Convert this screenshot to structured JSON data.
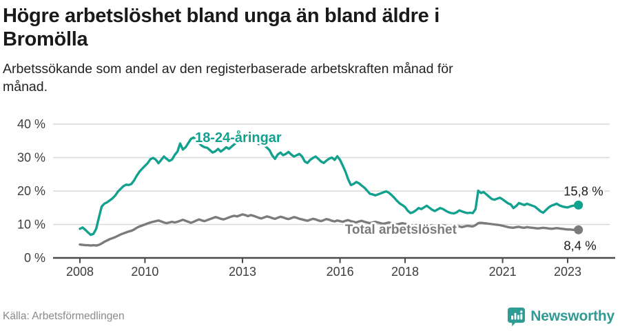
{
  "header": {
    "title": "Högre arbetslöshet bland unga än bland äldre i\nBromölla",
    "subtitle": "Arbetssökande som andel av den registerbaserade arbetskraften månad för\nmånad."
  },
  "footer": {
    "source": "Källa: Arbetsförmedlingen",
    "brand": "Newsworthy"
  },
  "colors": {
    "accent_teal": "#12A08F",
    "line_gray": "#7b7b7b",
    "brand_teal": "#2E9B94",
    "axis": "#4a4a4a",
    "grid": "#d9d9d9",
    "tick_text": "#3d3d3d",
    "value_text": "#1a1a1a"
  },
  "chart_data": {
    "type": "line",
    "title": "Högre arbetslöshet bland unga än bland äldre i Bromölla",
    "subtitle": "Arbetssökande som andel av den registerbaserade arbetskraften månad för månad.",
    "unit": "%",
    "x_start_year": 2008,
    "x_end_label": "2023-05",
    "months_per_point": 1,
    "x_ticks": [
      2008,
      2010,
      2013,
      2016,
      2018,
      2021,
      2023
    ],
    "x_tick_labels": [
      "2008",
      "2010",
      "2013",
      "2016",
      "2018",
      "2021",
      "2023"
    ],
    "y_ticks": [
      0,
      10,
      20,
      30,
      40
    ],
    "y_tick_labels": [
      "0 %",
      "10 %",
      "20 %",
      "30 %",
      "40 %"
    ],
    "ylim": [
      0,
      43
    ],
    "grid": true,
    "legend_position": "inline-labels",
    "series": [
      {
        "name": "18-24-åringar",
        "color": "#12A08F",
        "end_label": "15,8 %",
        "end_value": 15.8,
        "inline_label": {
          "year": 2011.54,
          "value": 34.6,
          "font_size": 20
        },
        "values": [
          8.7,
          9.1,
          8.4,
          7.6,
          6.9,
          7.2,
          8.7,
          12.0,
          15.3,
          16.2,
          16.6,
          17.2,
          17.8,
          18.6,
          19.8,
          20.6,
          21.4,
          21.9,
          21.8,
          22.1,
          23.2,
          24.6,
          25.8,
          26.7,
          27.5,
          28.3,
          29.5,
          29.9,
          29.4,
          28.3,
          29.3,
          30.3,
          29.6,
          29.0,
          29.4,
          30.8,
          31.8,
          34.2,
          32.4,
          33.1,
          34.3,
          35.6,
          36.0,
          35.2,
          34.3,
          33.5,
          33.1,
          32.9,
          32.2,
          31.5,
          31.9,
          32.6,
          31.8,
          32.4,
          33.1,
          32.6,
          33.3,
          34.0,
          34.6,
          35.2,
          35.8,
          35.3,
          34.7,
          35.2,
          35.6,
          34.8,
          34.0,
          34.4,
          33.7,
          33.0,
          32.2,
          30.6,
          29.6,
          30.9,
          31.5,
          30.7,
          31.1,
          31.7,
          30.9,
          30.3,
          30.7,
          31.1,
          30.3,
          28.8,
          28.4,
          29.3,
          29.9,
          30.3,
          29.6,
          28.8,
          28.4,
          29.1,
          29.7,
          30.0,
          29.3,
          30.4,
          29.3,
          27.6,
          25.8,
          23.5,
          21.8,
          22.1,
          22.7,
          22.3,
          21.6,
          21.0,
          20.1,
          19.2,
          19.0,
          18.7,
          19.0,
          19.3,
          19.6,
          19.9,
          19.5,
          18.8,
          18.0,
          17.1,
          16.3,
          15.8,
          15.2,
          14.1,
          13.4,
          13.7,
          14.2,
          14.9,
          14.6,
          15.1,
          15.6,
          15.0,
          14.4,
          14.0,
          14.5,
          14.9,
          14.6,
          14.1,
          13.7,
          13.4,
          13.3,
          13.6,
          14.2,
          13.9,
          13.6,
          13.4,
          13.5,
          13.4,
          14.6,
          20.1,
          19.4,
          19.7,
          19.0,
          18.3,
          17.6,
          17.4,
          17.7,
          18.0,
          17.5,
          16.9,
          16.3,
          16.0,
          14.9,
          15.5,
          16.4,
          16.1,
          15.8,
          16.2,
          15.9,
          15.6,
          15.3,
          14.6,
          13.9,
          13.5,
          14.3,
          15.1,
          15.6,
          15.9,
          16.2,
          15.7,
          15.4,
          15.2,
          15.1,
          15.4,
          15.6,
          15.7,
          15.8
        ]
      },
      {
        "name": "Total arbetslöshet",
        "color": "#7b7b7b",
        "end_label": "8,4 %",
        "end_value": 8.4,
        "inline_label": {
          "year": 2016.15,
          "value": 7.2,
          "font_size": 19
        },
        "values": [
          4.0,
          3.9,
          3.8,
          3.8,
          3.7,
          3.8,
          3.7,
          3.9,
          4.3,
          4.8,
          5.2,
          5.6,
          5.9,
          6.2,
          6.6,
          7.0,
          7.3,
          7.6,
          7.9,
          8.1,
          8.5,
          9.0,
          9.4,
          9.7,
          10.0,
          10.3,
          10.6,
          10.8,
          11.0,
          11.2,
          10.9,
          10.6,
          10.4,
          10.6,
          10.8,
          10.6,
          10.8,
          11.1,
          11.4,
          11.1,
          10.8,
          10.5,
          10.8,
          11.2,
          11.5,
          11.2,
          11.0,
          11.3,
          11.6,
          11.9,
          12.2,
          12.0,
          11.7,
          11.5,
          11.8,
          12.1,
          12.4,
          12.6,
          12.4,
          12.7,
          13.0,
          12.8,
          12.5,
          12.8,
          12.6,
          12.3,
          12.0,
          11.8,
          12.1,
          12.4,
          12.2,
          11.9,
          11.7,
          12.0,
          12.3,
          12.1,
          11.8,
          11.6,
          11.9,
          12.2,
          12.0,
          11.7,
          11.5,
          11.3,
          11.1,
          11.4,
          11.7,
          11.5,
          11.2,
          11.0,
          11.3,
          11.6,
          11.4,
          11.1,
          10.9,
          11.2,
          11.0,
          10.8,
          11.1,
          11.3,
          11.0,
          10.8,
          10.6,
          10.9,
          11.1,
          10.8,
          10.6,
          10.4,
          10.6,
          10.8,
          10.6,
          10.4,
          10.2,
          10.4,
          10.6,
          10.4,
          10.2,
          10.0,
          10.2,
          10.4,
          10.2,
          10.0,
          9.8,
          9.6,
          9.8,
          10.0,
          9.8,
          9.6,
          9.4,
          9.6,
          9.8,
          9.6,
          9.4,
          9.6,
          9.8,
          9.6,
          9.4,
          9.2,
          9.4,
          9.6,
          9.4,
          9.2,
          9.4,
          9.6,
          9.5,
          9.4,
          9.8,
          10.4,
          10.5,
          10.4,
          10.3,
          10.2,
          10.1,
          10.0,
          9.9,
          9.8,
          9.6,
          9.4,
          9.2,
          9.1,
          9.0,
          9.2,
          9.3,
          9.1,
          9.0,
          9.2,
          9.1,
          9.0,
          8.9,
          8.8,
          8.9,
          9.0,
          8.9,
          8.8,
          8.7,
          8.8,
          8.9,
          8.8,
          8.7,
          8.6,
          8.5,
          8.5,
          8.4,
          8.4,
          8.4
        ]
      }
    ]
  }
}
